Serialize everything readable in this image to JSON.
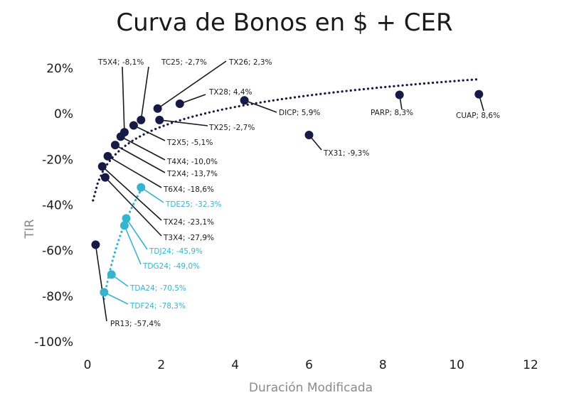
{
  "chart_data": {
    "type": "scatter",
    "title": "Curva de Bonos en $ + CER",
    "xlabel": "Duración Modificada",
    "ylabel": "TIR",
    "xlim": [
      0,
      12
    ],
    "ylim": [
      -100,
      20
    ],
    "x_ticks": [
      "0",
      "2",
      "4",
      "6",
      "8",
      "10",
      "12"
    ],
    "y_ticks": [
      "20%",
      "0%",
      "-20%",
      "-40%",
      "-60%",
      "-80%",
      "-100%"
    ],
    "colors": {
      "dark": "#161a45",
      "light": "#34b4cf"
    },
    "series": [
      {
        "color_key": "dark",
        "trendline": "logarithmic",
        "points": [
          {
            "label": "T5X4; -8,1%",
            "x": 1.0,
            "y": -8.1
          },
          {
            "label": "TC25; -2,7%",
            "x": 1.45,
            "y": -2.7
          },
          {
            "label": "TX26; 2,3%",
            "x": 1.9,
            "y": 2.3
          },
          {
            "label": "TX28; 4,4%",
            "x": 2.5,
            "y": 4.4
          },
          {
            "label": "TX25; -2,7%",
            "x": 1.95,
            "y": -2.7
          },
          {
            "label": "DICP; 5,9%",
            "x": 4.25,
            "y": 5.9
          },
          {
            "label": "PARP; 8,3%",
            "x": 8.45,
            "y": 8.3
          },
          {
            "label": "CUAP; 8,6%",
            "x": 10.6,
            "y": 8.6
          },
          {
            "label": "TX31; -9,3%",
            "x": 6.0,
            "y": -9.3
          },
          {
            "label": "T2X5; -5,1%",
            "x": 1.25,
            "y": -5.1
          },
          {
            "label": "T4X4; -10,0%",
            "x": 0.9,
            "y": -10.0
          },
          {
            "label": "T2X4; -13,7%",
            "x": 0.75,
            "y": -13.7
          },
          {
            "label": "T6X4; -18,6%",
            "x": 0.55,
            "y": -18.6
          },
          {
            "label": "TX24; -23,1%",
            "x": 0.4,
            "y": -23.1
          },
          {
            "label": "T3X4; -27,9%",
            "x": 0.48,
            "y": -27.9
          },
          {
            "label": "PR13; -57,4%",
            "x": 0.22,
            "y": -57.4
          }
        ]
      },
      {
        "color_key": "light",
        "trendline": "logarithmic",
        "points": [
          {
            "label": "TDE25; -32,3%",
            "x": 1.45,
            "y": -32.3
          },
          {
            "label": "TDJ24; -45,9%",
            "x": 1.05,
            "y": -45.9
          },
          {
            "label": "TDG24; -49,0%",
            "x": 1.0,
            "y": -49.0
          },
          {
            "label": "TDA24; -70,5%",
            "x": 0.65,
            "y": -70.5
          },
          {
            "label": "TDF24; -78,3%",
            "x": 0.45,
            "y": -78.3
          }
        ]
      }
    ]
  }
}
